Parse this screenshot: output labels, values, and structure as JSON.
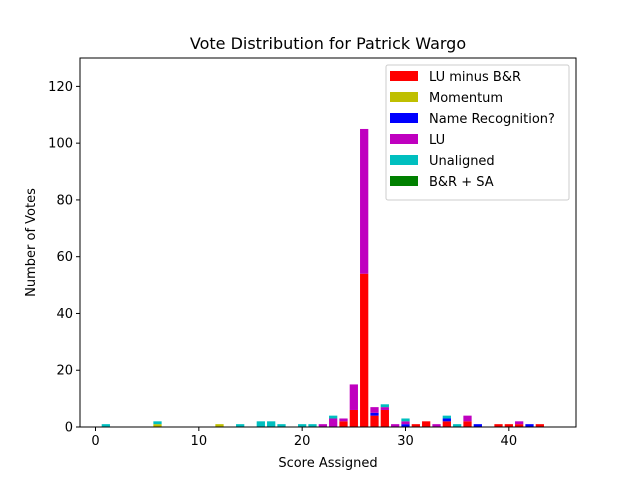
{
  "chart_data": {
    "type": "bar",
    "stacked": true,
    "title": "Vote Distribution for Patrick Wargo",
    "xlabel": "Score Assigned",
    "ylabel": "Number of Votes",
    "xlim": [
      -1.5,
      46.5
    ],
    "ylim": [
      0,
      130
    ],
    "xticks": [
      0,
      10,
      20,
      30,
      40
    ],
    "yticks": [
      0,
      20,
      40,
      60,
      80,
      100,
      120
    ],
    "grid": false,
    "legend_position": "top-right",
    "x": [
      1,
      6,
      12,
      14,
      16,
      17,
      18,
      20,
      21,
      22,
      23,
      24,
      25,
      26,
      27,
      28,
      29,
      30,
      31,
      32,
      33,
      34,
      35,
      36,
      37,
      39,
      40,
      41,
      42,
      43
    ],
    "series": [
      {
        "name": "LU minus B&R",
        "color": "#ff0000",
        "values": [
          0,
          0,
          0,
          0,
          0,
          0,
          0,
          0,
          0,
          0,
          0,
          2,
          6,
          54,
          4,
          6,
          0,
          0,
          1,
          2,
          0,
          2,
          0,
          2,
          0,
          1,
          1,
          1,
          0,
          1
        ]
      },
      {
        "name": "Momentum",
        "color": "#bfbf00",
        "values": [
          0,
          1,
          1,
          0,
          0,
          0,
          0,
          0,
          0,
          0,
          0,
          0,
          0,
          0,
          0,
          0,
          0,
          0,
          0,
          0,
          0,
          0,
          0,
          0,
          0,
          0,
          0,
          0,
          0,
          0
        ]
      },
      {
        "name": "Name Recognition?",
        "color": "#0000ff",
        "values": [
          0,
          0,
          0,
          0,
          0,
          0,
          0,
          0,
          0,
          0,
          0,
          0,
          0,
          0,
          1,
          0,
          0,
          1,
          0,
          0,
          0,
          1,
          0,
          0,
          1,
          0,
          0,
          0,
          1,
          0
        ]
      },
      {
        "name": "LU",
        "color": "#bf00bf",
        "values": [
          0,
          0,
          0,
          0,
          0,
          0,
          0,
          0,
          0,
          1,
          3,
          1,
          9,
          51,
          2,
          1,
          1,
          1,
          0,
          0,
          1,
          0,
          0,
          2,
          0,
          0,
          0,
          1,
          0,
          0
        ]
      },
      {
        "name": "Unaligned",
        "color": "#00bfbf",
        "values": [
          1,
          1,
          0,
          1,
          2,
          2,
          1,
          1,
          1,
          0,
          1,
          0,
          0,
          0,
          0,
          1,
          0,
          1,
          0,
          0,
          0,
          1,
          1,
          0,
          0,
          0,
          0,
          0,
          0,
          0
        ]
      },
      {
        "name": "B&R + SA",
        "color": "#008000",
        "values": [
          0,
          0,
          0,
          0,
          0,
          0,
          0,
          0,
          0,
          0,
          0,
          0,
          0,
          0,
          0,
          0,
          0,
          0,
          0,
          0,
          0,
          0,
          0,
          0,
          0,
          0,
          0,
          0,
          0,
          0
        ]
      }
    ]
  }
}
